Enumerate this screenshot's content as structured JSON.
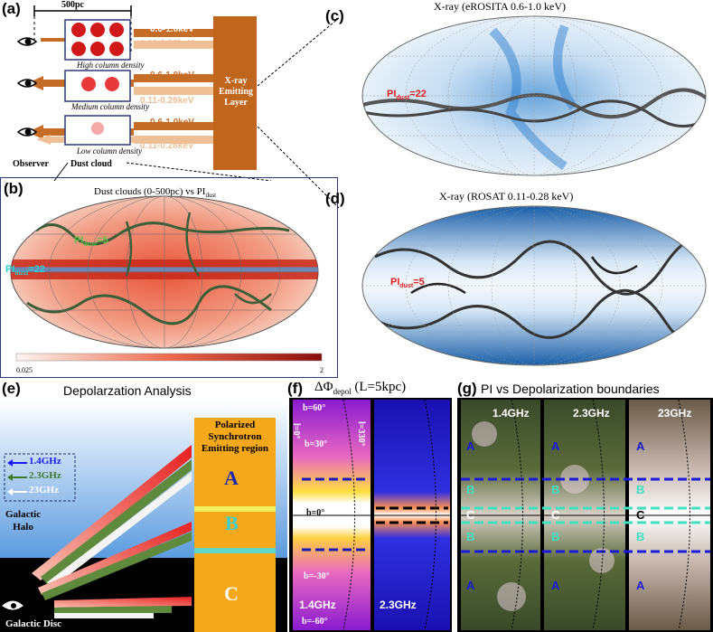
{
  "panels": {
    "a": {
      "label": "(a)",
      "scale": "500pc",
      "band_hi": "0.6-1.0keV",
      "band_lo": "0.11-0.28keV",
      "density_high": "High column density",
      "density_medium": "Medium column density",
      "density_low": "Low column density",
      "observer": "Observer",
      "dust_cloud": "Dust cloud",
      "emitting_layer": [
        "X-ray",
        "Emitting",
        "Layer"
      ]
    },
    "b": {
      "label": "(b)",
      "title_main": "Dust clouds (0-500pc) vs PI",
      "title_sub": "dust",
      "contour_1_main": "PI",
      "contour_1_sub": "dust",
      "contour_1_val": "=5",
      "contour_2_main": "PI",
      "contour_2_sub": "dust",
      "contour_2_val": "=22",
      "cbar_min": "0.025",
      "cbar_max": "2"
    },
    "c": {
      "label": "(c)",
      "title": "X-ray (eROSITA 0.6-1.0 keV)",
      "contour_main": "PI",
      "contour_sub": "dust",
      "contour_val": "=22"
    },
    "d": {
      "label": "(d)",
      "title": "X-ray (ROSAT 0.11-0.28 keV)",
      "contour_main": "PI",
      "contour_sub": "dust",
      "contour_val": "=5"
    },
    "e": {
      "label": "(e)",
      "title": "Depolarzation Analysis",
      "freqs": [
        "1.4GHz",
        "2.3GHz",
        "23GHz"
      ],
      "freq_colors": [
        "#1a1aff",
        "#3f7a2a",
        "#ffffff"
      ],
      "region_title": [
        "Polarized",
        "Synchrotron",
        "Emitting region"
      ],
      "regions": [
        "A",
        "B",
        "C"
      ],
      "halo": [
        "Galactic",
        "Halo"
      ],
      "disc": "Galactic Disc"
    },
    "f": {
      "label": "(f)",
      "title_main": "ΔΦ",
      "title_sub": "depol",
      "title_tail": " (L=5kpc)",
      "lat_labels": [
        "b=60°",
        "b=30°",
        "b=0°",
        "b=-30°",
        "b=-60°"
      ],
      "lon_labels": [
        "l=0°",
        "l=330°"
      ],
      "freqs": [
        "1.4GHz",
        "2.3GHz"
      ]
    },
    "g": {
      "label": "(g)",
      "title": "PI vs Depolarization boundaries",
      "freqs": [
        "1.4GHz",
        "2.3GHz",
        "23GHz"
      ],
      "region_letters": [
        "A",
        "B",
        "C",
        "B",
        "A"
      ]
    }
  }
}
